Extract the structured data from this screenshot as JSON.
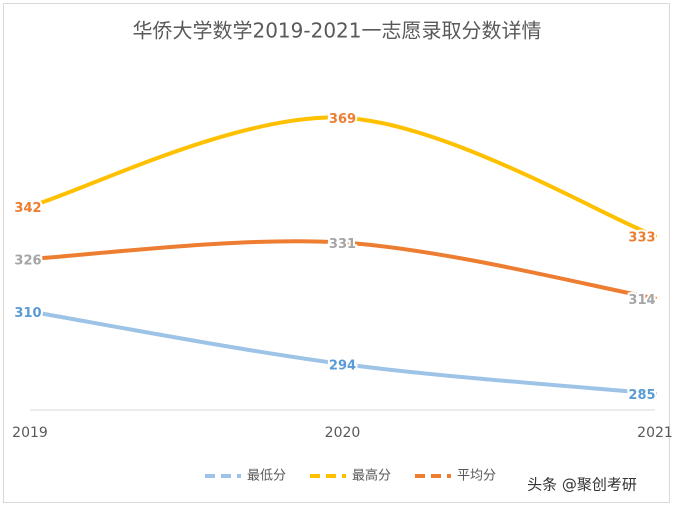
{
  "chart_data": {
    "type": "line",
    "title": "华侨大学数学2019-2021一志愿录取分数详情",
    "categories": [
      "2019",
      "2020",
      "2021"
    ],
    "series": [
      {
        "name": "最低分",
        "color": "#9dc3e6",
        "label_color": "#5b9bd5",
        "values": [
          310,
          294,
          285
        ]
      },
      {
        "name": "最高分",
        "color": "#ffc000",
        "label_color": "#ed7d31",
        "values": [
          342,
          369,
          333
        ]
      },
      {
        "name": "平均分",
        "color": "#ed7d31",
        "label_color": "#a5a5a5",
        "values": [
          326,
          331,
          314
        ]
      }
    ],
    "ylim": [
      280,
      375
    ],
    "smooth": true,
    "legend": "bottom",
    "watermark": "头条 @聚创考研"
  }
}
